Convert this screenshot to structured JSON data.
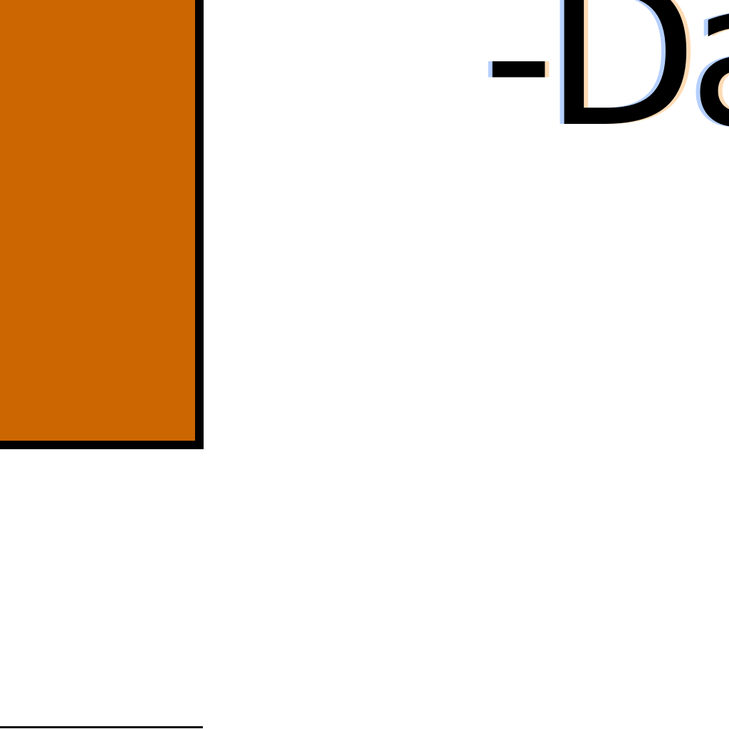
{
  "text_fragment": "-Da",
  "colors": {
    "panel_fill": "#cc6600",
    "panel_border": "#000000",
    "background": "#ffffff",
    "text": "#000000"
  }
}
